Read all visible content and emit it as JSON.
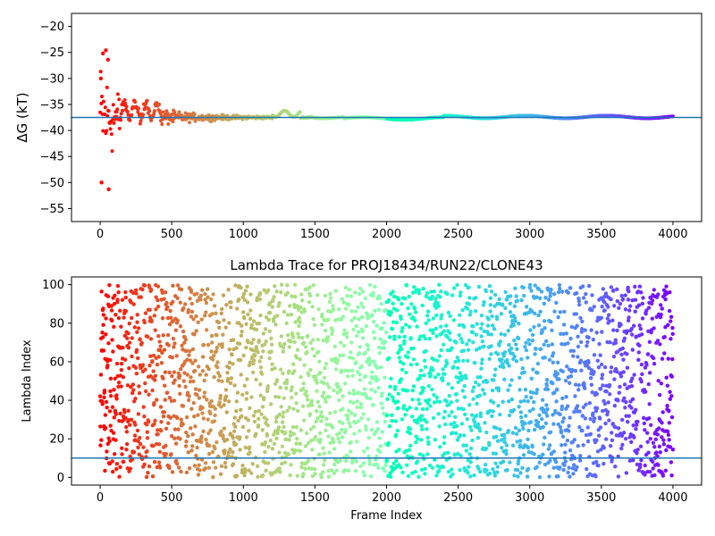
{
  "chart_data": [
    {
      "type": "scatter",
      "title": "",
      "xlabel": "",
      "ylabel": "ΔG (kT)",
      "xlim": [
        -200,
        4200
      ],
      "ylim": [
        -57.5,
        -17.5
      ],
      "xticks": [
        0,
        500,
        1000,
        1500,
        2000,
        2500,
        3000,
        3500,
        4000
      ],
      "yticks": [
        -55,
        -50,
        -45,
        -40,
        -35,
        -30,
        -25,
        -20
      ],
      "colormap": "rainbow (red at frame 0 → purple at frame 4000)",
      "reference_line": {
        "y": -37.5,
        "color": "#1f77b4"
      },
      "series": [
        {
          "description": "running free-energy estimate per frame; wide scatter early, converging to about -37.5 after frame 1500",
          "key_points": [
            {
              "x": 5,
              "y": -30
            },
            {
              "x": 10,
              "y": -50
            },
            {
              "x": 20,
              "y": -25.2
            },
            {
              "x": 40,
              "y": -24.6
            },
            {
              "x": 55,
              "y": -26.4
            },
            {
              "x": 60,
              "y": -51.3
            },
            {
              "x": 100,
              "y": -33
            },
            {
              "x": 150,
              "y": -39
            },
            {
              "x": 200,
              "y": -35.5
            },
            {
              "x": 300,
              "y": -37.5
            },
            {
              "x": 500,
              "y": -37
            },
            {
              "x": 700,
              "y": -37.4
            },
            {
              "x": 1000,
              "y": -37.5
            },
            {
              "x": 1300,
              "y": -36.6
            },
            {
              "x": 1500,
              "y": -37.2
            },
            {
              "x": 2000,
              "y": -37.8
            },
            {
              "x": 2500,
              "y": -37.6
            },
            {
              "x": 3000,
              "y": -37.4
            },
            {
              "x": 3500,
              "y": -37.3
            },
            {
              "x": 4000,
              "y": -37.3
            }
          ]
        }
      ]
    },
    {
      "type": "scatter",
      "title": "Lambda Trace for PROJ18434/RUN22/CLONE43",
      "xlabel": "Frame Index",
      "ylabel": "Lambda Index",
      "xlim": [
        -200,
        4200
      ],
      "ylim": [
        -4,
        104
      ],
      "xticks": [
        0,
        500,
        1000,
        1500,
        2000,
        2500,
        3000,
        3500,
        4000
      ],
      "yticks": [
        0,
        20,
        40,
        60,
        80,
        100
      ],
      "colormap": "rainbow (red at frame 0 → purple at frame 4000)",
      "reference_line": {
        "y": 10,
        "color": "#1f77b4"
      },
      "series": [
        {
          "description": "lambda index sampled per frame, roughly uniform between 0 and 100 across frames 0–4000",
          "x_range": [
            0,
            4000
          ],
          "y_range": [
            0,
            100
          ]
        }
      ]
    }
  ]
}
